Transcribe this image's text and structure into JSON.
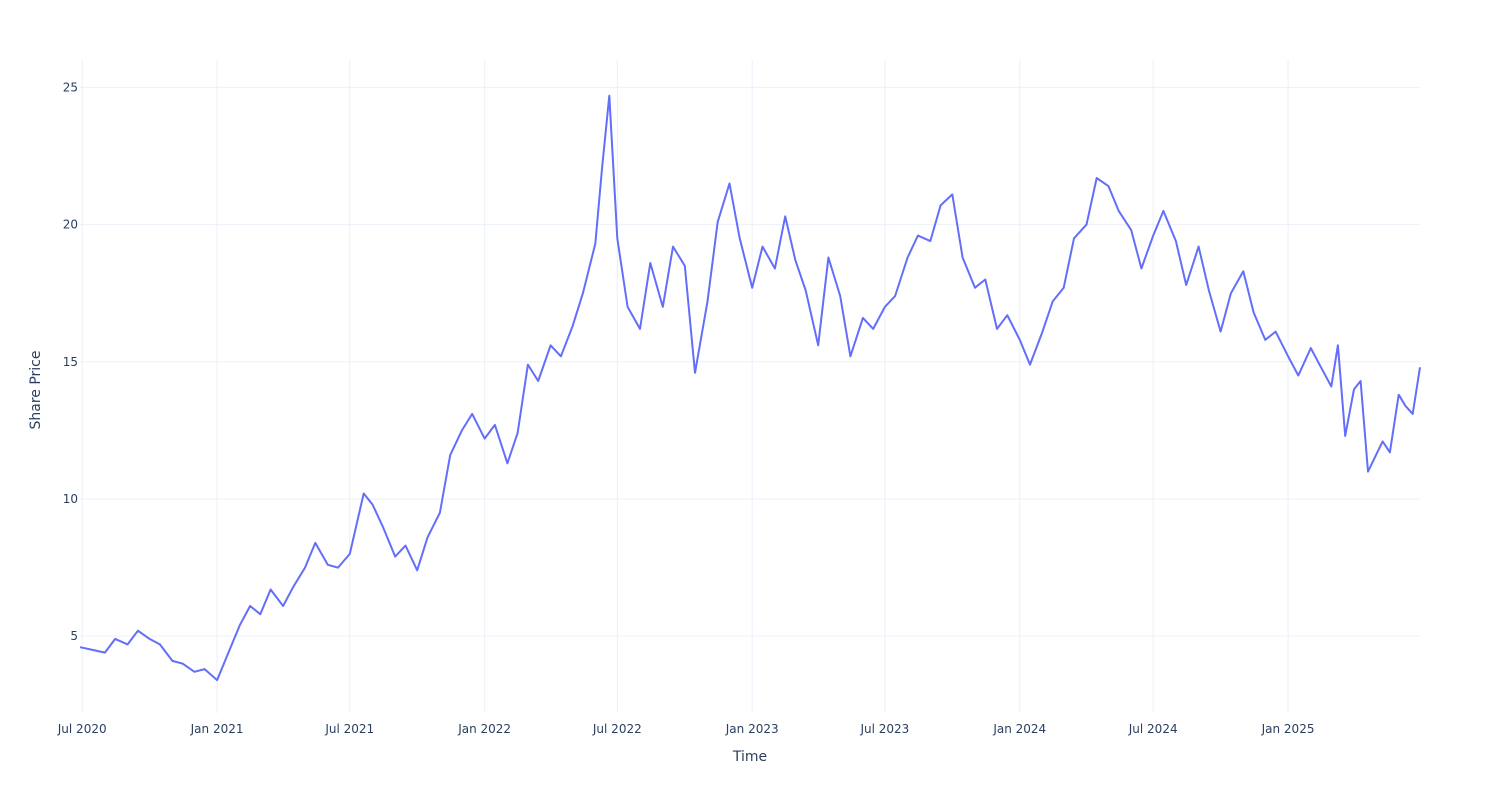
{
  "chart_data": {
    "type": "line",
    "title": "",
    "xlabel": "Time",
    "ylabel": "Share Price",
    "x_range": [
      "2020-06-28",
      "2025-06-30"
    ],
    "ylim": [
      2.2,
      26.0
    ],
    "grid": true,
    "x_ticks": [
      {
        "date": "2020-07-01",
        "label": "Jul 2020"
      },
      {
        "date": "2021-01-01",
        "label": "Jan 2021"
      },
      {
        "date": "2021-07-01",
        "label": "Jul 2021"
      },
      {
        "date": "2022-01-01",
        "label": "Jan 2022"
      },
      {
        "date": "2022-07-01",
        "label": "Jul 2022"
      },
      {
        "date": "2023-01-01",
        "label": "Jan 2023"
      },
      {
        "date": "2023-07-01",
        "label": "Jul 2023"
      },
      {
        "date": "2024-01-01",
        "label": "Jan 2024"
      },
      {
        "date": "2024-07-01",
        "label": "Jul 2024"
      },
      {
        "date": "2025-01-01",
        "label": "Jan 2025"
      }
    ],
    "y_ticks": [
      5,
      10,
      15,
      20,
      25
    ],
    "series": [
      {
        "color": "#636efa",
        "points": [
          [
            "2020-06-28",
            4.6
          ],
          [
            "2020-07-15",
            4.5
          ],
          [
            "2020-08-01",
            4.4
          ],
          [
            "2020-08-15",
            4.9
          ],
          [
            "2020-09-01",
            4.7
          ],
          [
            "2020-09-15",
            5.2
          ],
          [
            "2020-10-01",
            4.9
          ],
          [
            "2020-10-15",
            4.7
          ],
          [
            "2020-11-01",
            4.1
          ],
          [
            "2020-11-15",
            4.0
          ],
          [
            "2020-12-01",
            3.7
          ],
          [
            "2020-12-15",
            3.8
          ],
          [
            "2021-01-01",
            3.4
          ],
          [
            "2021-01-15",
            4.3
          ],
          [
            "2021-02-01",
            5.4
          ],
          [
            "2021-02-15",
            6.1
          ],
          [
            "2021-03-01",
            5.8
          ],
          [
            "2021-03-15",
            6.7
          ],
          [
            "2021-04-01",
            6.1
          ],
          [
            "2021-04-15",
            6.8
          ],
          [
            "2021-05-01",
            7.5
          ],
          [
            "2021-05-15",
            8.4
          ],
          [
            "2021-06-01",
            7.6
          ],
          [
            "2021-06-15",
            7.5
          ],
          [
            "2021-07-01",
            8.0
          ],
          [
            "2021-07-20",
            10.2
          ],
          [
            "2021-08-01",
            9.8
          ],
          [
            "2021-08-15",
            9.0
          ],
          [
            "2021-09-01",
            7.9
          ],
          [
            "2021-09-15",
            8.3
          ],
          [
            "2021-10-01",
            7.4
          ],
          [
            "2021-10-15",
            8.6
          ],
          [
            "2021-11-01",
            9.5
          ],
          [
            "2021-11-15",
            11.6
          ],
          [
            "2021-12-01",
            12.5
          ],
          [
            "2021-12-15",
            13.1
          ],
          [
            "2022-01-01",
            12.2
          ],
          [
            "2022-01-15",
            12.7
          ],
          [
            "2022-02-01",
            11.3
          ],
          [
            "2022-02-15",
            12.4
          ],
          [
            "2022-03-01",
            14.9
          ],
          [
            "2022-03-15",
            14.3
          ],
          [
            "2022-04-01",
            15.6
          ],
          [
            "2022-04-15",
            15.2
          ],
          [
            "2022-05-01",
            16.3
          ],
          [
            "2022-05-15",
            17.5
          ],
          [
            "2022-06-01",
            19.3
          ],
          [
            "2022-06-10",
            22.0
          ],
          [
            "2022-06-20",
            24.7
          ],
          [
            "2022-07-01",
            19.5
          ],
          [
            "2022-07-15",
            17.0
          ],
          [
            "2022-08-01",
            16.2
          ],
          [
            "2022-08-15",
            18.6
          ],
          [
            "2022-09-01",
            17.0
          ],
          [
            "2022-09-15",
            19.2
          ],
          [
            "2022-10-01",
            18.5
          ],
          [
            "2022-10-15",
            14.6
          ],
          [
            "2022-11-01",
            17.2
          ],
          [
            "2022-11-15",
            20.1
          ],
          [
            "2022-12-01",
            21.5
          ],
          [
            "2022-12-15",
            19.5
          ],
          [
            "2023-01-01",
            17.7
          ],
          [
            "2023-01-15",
            19.2
          ],
          [
            "2023-02-01",
            18.4
          ],
          [
            "2023-02-15",
            20.3
          ],
          [
            "2023-03-01",
            18.7
          ],
          [
            "2023-03-15",
            17.6
          ],
          [
            "2023-04-01",
            15.6
          ],
          [
            "2023-04-15",
            18.8
          ],
          [
            "2023-05-01",
            17.4
          ],
          [
            "2023-05-15",
            15.2
          ],
          [
            "2023-06-01",
            16.6
          ],
          [
            "2023-06-15",
            16.2
          ],
          [
            "2023-07-01",
            17.0
          ],
          [
            "2023-07-15",
            17.4
          ],
          [
            "2023-08-01",
            18.8
          ],
          [
            "2023-08-15",
            19.6
          ],
          [
            "2023-09-01",
            19.4
          ],
          [
            "2023-09-15",
            20.7
          ],
          [
            "2023-10-01",
            21.1
          ],
          [
            "2023-10-15",
            18.8
          ],
          [
            "2023-11-01",
            17.7
          ],
          [
            "2023-11-15",
            18.0
          ],
          [
            "2023-12-01",
            16.2
          ],
          [
            "2023-12-15",
            16.7
          ],
          [
            "2024-01-01",
            15.8
          ],
          [
            "2024-01-15",
            14.9
          ],
          [
            "2024-02-01",
            16.1
          ],
          [
            "2024-02-15",
            17.2
          ],
          [
            "2024-03-01",
            17.7
          ],
          [
            "2024-03-15",
            19.5
          ],
          [
            "2024-04-01",
            20.0
          ],
          [
            "2024-04-15",
            21.7
          ],
          [
            "2024-05-01",
            21.4
          ],
          [
            "2024-05-15",
            20.5
          ],
          [
            "2024-06-01",
            19.8
          ],
          [
            "2024-06-15",
            18.4
          ],
          [
            "2024-07-01",
            19.6
          ],
          [
            "2024-07-15",
            20.5
          ],
          [
            "2024-08-01",
            19.4
          ],
          [
            "2024-08-15",
            17.8
          ],
          [
            "2024-09-01",
            19.2
          ],
          [
            "2024-09-15",
            17.6
          ],
          [
            "2024-10-01",
            16.1
          ],
          [
            "2024-10-15",
            17.5
          ],
          [
            "2024-11-01",
            18.3
          ],
          [
            "2024-11-15",
            16.8
          ],
          [
            "2024-12-01",
            15.8
          ],
          [
            "2024-12-15",
            16.1
          ],
          [
            "2025-01-01",
            15.2
          ],
          [
            "2025-01-15",
            14.5
          ],
          [
            "2025-02-01",
            15.5
          ],
          [
            "2025-02-15",
            14.8
          ],
          [
            "2025-03-01",
            14.1
          ],
          [
            "2025-03-10",
            15.6
          ],
          [
            "2025-03-20",
            12.3
          ],
          [
            "2025-04-01",
            14.0
          ],
          [
            "2025-04-10",
            14.3
          ],
          [
            "2025-04-20",
            11.0
          ],
          [
            "2025-05-01",
            11.6
          ],
          [
            "2025-05-10",
            12.1
          ],
          [
            "2025-05-20",
            11.7
          ],
          [
            "2025-06-01",
            13.8
          ],
          [
            "2025-06-10",
            13.4
          ],
          [
            "2025-06-20",
            13.1
          ],
          [
            "2025-06-30",
            14.8
          ]
        ]
      }
    ]
  }
}
